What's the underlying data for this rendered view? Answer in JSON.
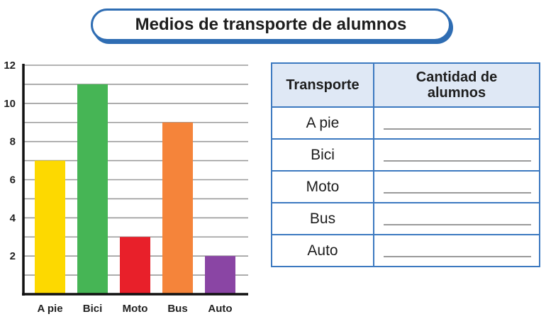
{
  "title": "Medios de transporte de alumnos",
  "chart_data": {
    "type": "bar",
    "title": "Medios de transporte de alumnos",
    "categories": [
      "A pie",
      "Bici",
      "Moto",
      "Bus",
      "Auto"
    ],
    "values": [
      7,
      11,
      3,
      9,
      2
    ],
    "colors": [
      "#fdd900",
      "#46b555",
      "#e8202a",
      "#f5843a",
      "#8a45a4"
    ],
    "xlabel": "",
    "ylabel": "",
    "ylim": [
      0,
      12
    ],
    "yticks": [
      2,
      4,
      6,
      8,
      10,
      12
    ],
    "grid_step": 1,
    "grid": true
  },
  "table": {
    "headers": [
      "Transporte",
      "Cantidad de alumnos"
    ],
    "rows": [
      {
        "transporte": "A pie",
        "cantidad": ""
      },
      {
        "transporte": "Bici",
        "cantidad": ""
      },
      {
        "transporte": "Moto",
        "cantidad": ""
      },
      {
        "transporte": "Bus",
        "cantidad": ""
      },
      {
        "transporte": "Auto",
        "cantidad": ""
      }
    ]
  }
}
